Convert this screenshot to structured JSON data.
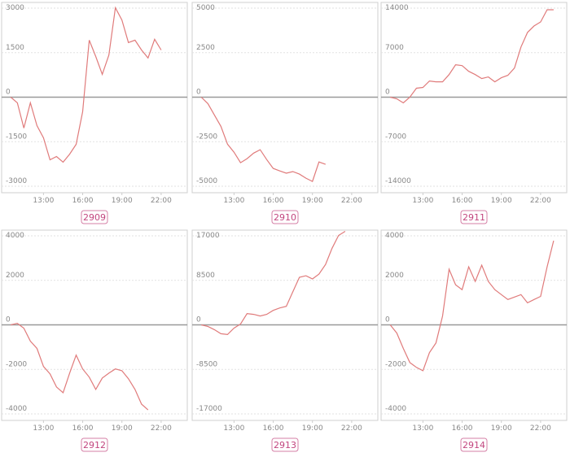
{
  "chart_data": [
    {
      "type": "line",
      "title": "2909",
      "color": "#e07b7b",
      "x": [
        10.5,
        11,
        11.5,
        12,
        12.5,
        13,
        13.5,
        14,
        14.5,
        15,
        15.5,
        16,
        16.5,
        17,
        17.5,
        18,
        18.5,
        19,
        19.5,
        20,
        20.5,
        21,
        21.5,
        22
      ],
      "values": [
        0,
        -190,
        -1040,
        -190,
        -960,
        -1370,
        -2110,
        -2000,
        -2190,
        -1920,
        -1590,
        -490,
        1920,
        1370,
        770,
        1420,
        3010,
        2600,
        1840,
        1920,
        1590,
        1320,
        1950,
        1590
      ],
      "xlim": [
        9.8,
        24
      ],
      "xticks": [
        {
          "value": 13,
          "label": "13:00"
        },
        {
          "value": 16,
          "label": "16:00"
        },
        {
          "value": 19,
          "label": "19:00"
        },
        {
          "value": 22,
          "label": "22:00"
        }
      ],
      "ylim": [
        -3000,
        3000
      ],
      "yticks": [
        -3000,
        -1500,
        0,
        1500,
        3000
      ],
      "grid": true
    },
    {
      "type": "line",
      "title": "2910",
      "color": "#e07b7b",
      "x": [
        10.5,
        11,
        11.5,
        12,
        12.5,
        13,
        13.5,
        14,
        14.5,
        15,
        15.5,
        16,
        16.5,
        17,
        17.5,
        18,
        18.5,
        19,
        19.5,
        20
      ],
      "values": [
        0,
        -360,
        -1000,
        -1640,
        -2640,
        -3090,
        -3680,
        -3450,
        -3140,
        -2950,
        -3500,
        -4000,
        -4140,
        -4270,
        -4180,
        -4320,
        -4550,
        -4730,
        -3640,
        -3770
      ],
      "xlim": [
        9.8,
        24
      ],
      "xticks": [
        {
          "value": 13,
          "label": "13:00"
        },
        {
          "value": 16,
          "label": "16:00"
        },
        {
          "value": 19,
          "label": "19:00"
        },
        {
          "value": 22,
          "label": "22:00"
        }
      ],
      "ylim": [
        -5000,
        5000
      ],
      "yticks": [
        -5000,
        -2500,
        0,
        2500,
        5000
      ],
      "grid": true
    },
    {
      "type": "line",
      "title": "2911",
      "color": "#e07b7b",
      "x": [
        10.5,
        11,
        11.5,
        12,
        12.5,
        13,
        13.5,
        14,
        14.5,
        15,
        15.5,
        16,
        16.5,
        17,
        17.5,
        18,
        18.5,
        19,
        19.5,
        20,
        20.5,
        21,
        21.5,
        22,
        22.5,
        23
      ],
      "values": [
        0,
        -250,
        -890,
        0,
        1400,
        1530,
        2540,
        2420,
        2420,
        3560,
        5090,
        4960,
        4070,
        3560,
        2930,
        3180,
        2420,
        3050,
        3440,
        4580,
        7890,
        10180,
        11200,
        11830,
        13740,
        13740
      ],
      "xlim": [
        9.8,
        24
      ],
      "xticks": [
        {
          "value": 13,
          "label": "13:00"
        },
        {
          "value": 16,
          "label": "16:00"
        },
        {
          "value": 19,
          "label": "19:00"
        },
        {
          "value": 22,
          "label": "22:00"
        }
      ],
      "ylim": [
        -14000,
        14000
      ],
      "yticks": [
        -14000,
        -7000,
        0,
        7000,
        14000
      ],
      "grid": true
    },
    {
      "type": "line",
      "title": "2912",
      "color": "#e07b7b",
      "x": [
        10.5,
        11,
        11.5,
        12,
        12.5,
        13,
        13.5,
        14,
        14.5,
        15,
        15.5,
        16,
        16.5,
        17,
        17.5,
        18,
        18.5,
        19,
        19.5,
        20,
        20.5,
        21
      ],
      "values": [
        0,
        70,
        -150,
        -730,
        -1060,
        -1870,
        -2200,
        -2790,
        -3050,
        -2170,
        -1360,
        -1980,
        -2350,
        -2900,
        -2390,
        -2170,
        -1980,
        -2060,
        -2420,
        -2900,
        -3560,
        -3820
      ],
      "xlim": [
        9.8,
        24
      ],
      "xticks": [
        {
          "value": 13,
          "label": "13:00"
        },
        {
          "value": 16,
          "label": "16:00"
        },
        {
          "value": 19,
          "label": "19:00"
        },
        {
          "value": 22,
          "label": "22:00"
        }
      ],
      "ylim": [
        -4000,
        4000
      ],
      "yticks": [
        -4000,
        -2000,
        0,
        2000,
        4000
      ],
      "grid": true
    },
    {
      "type": "line",
      "title": "2913",
      "color": "#e07b7b",
      "x": [
        10.5,
        11,
        11.5,
        12,
        12.5,
        13,
        13.5,
        14,
        14.5,
        15,
        15.5,
        16,
        16.5,
        17,
        17.5,
        18,
        18.5,
        19,
        19.5,
        20,
        20.5,
        21,
        21.5
      ],
      "values": [
        0,
        -310,
        -920,
        -1690,
        -1850,
        -620,
        150,
        2150,
        2000,
        1690,
        2000,
        2770,
        3230,
        3540,
        6310,
        9080,
        9380,
        8770,
        9690,
        11540,
        14620,
        17080,
        17850
      ],
      "xlim": [
        9.8,
        24
      ],
      "xticks": [
        {
          "value": 13,
          "label": "13:00"
        },
        {
          "value": 16,
          "label": "16:00"
        },
        {
          "value": 19,
          "label": "19:00"
        },
        {
          "value": 22,
          "label": "22:00"
        }
      ],
      "ylim": [
        -17000,
        17000
      ],
      "yticks": [
        -17000,
        -8500,
        0,
        8500,
        17000
      ],
      "grid": true
    },
    {
      "type": "line",
      "title": "2914",
      "color": "#e07b7b",
      "x": [
        10.5,
        11,
        11.5,
        12,
        12.5,
        13,
        13.5,
        14,
        14.5,
        15,
        15.5,
        16,
        16.5,
        17,
        17.5,
        18,
        18.5,
        19,
        19.5,
        20,
        20.5,
        21,
        21.5,
        22,
        22.5,
        23
      ],
      "values": [
        0,
        -370,
        -1060,
        -1690,
        -1910,
        -2060,
        -1250,
        -810,
        400,
        2500,
        1800,
        1580,
        2610,
        1950,
        2680,
        1950,
        1580,
        1360,
        1140,
        1250,
        1360,
        990,
        1140,
        1280,
        2610,
        3780
      ],
      "xlim": [
        9.8,
        24
      ],
      "xticks": [
        {
          "value": 13,
          "label": "13:00"
        },
        {
          "value": 16,
          "label": "16:00"
        },
        {
          "value": 19,
          "label": "19:00"
        },
        {
          "value": 22,
          "label": "22:00"
        }
      ],
      "ylim": [
        -4000,
        4000
      ],
      "yticks": [
        -4000,
        -2000,
        0,
        2000,
        4000
      ],
      "grid": true
    }
  ]
}
